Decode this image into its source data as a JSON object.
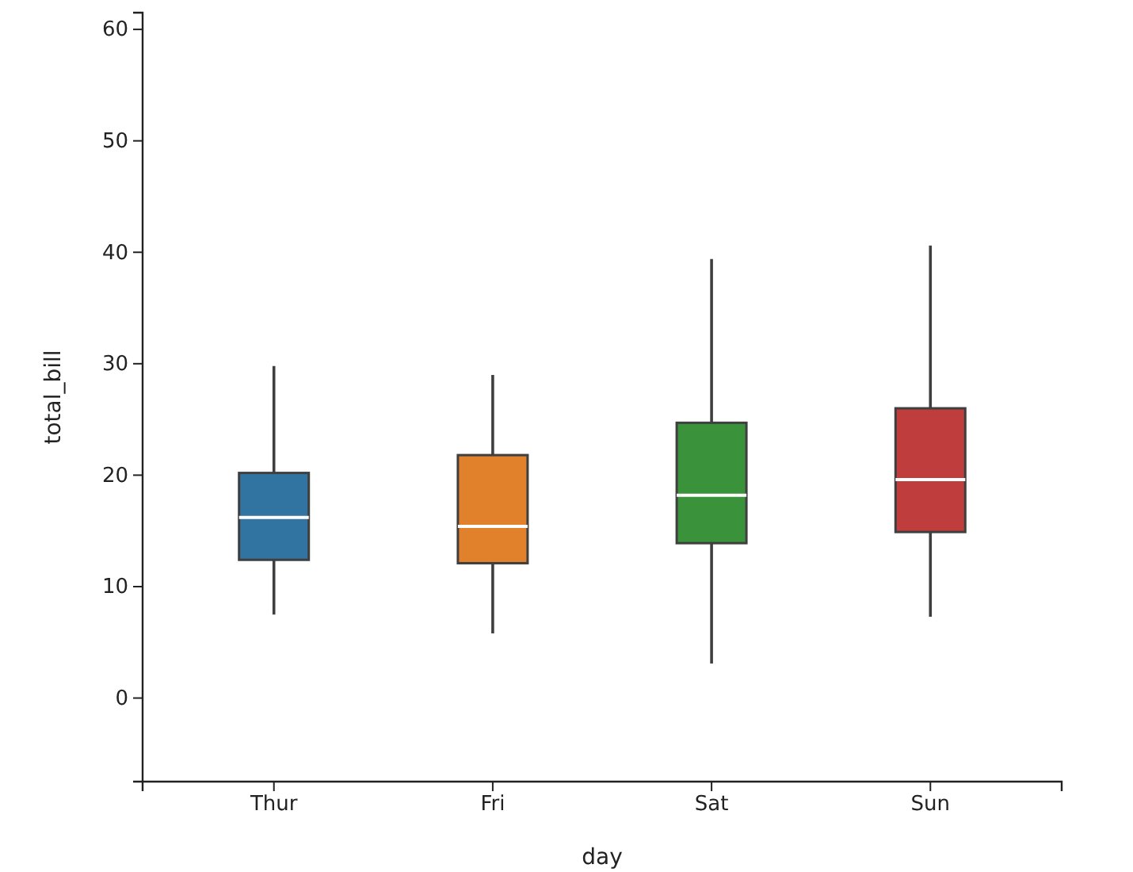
{
  "chart_data": {
    "type": "box",
    "xlabel": "day",
    "ylabel": "total_bill",
    "categories": [
      "Thur",
      "Fri",
      "Sat",
      "Sun"
    ],
    "colors": [
      "#3274a1",
      "#e1812c",
      "#3a923a",
      "#c03d3e"
    ],
    "boxes": [
      {
        "low": 7.5,
        "q1": 12.4,
        "median": 16.2,
        "q3": 20.2,
        "high": 29.8
      },
      {
        "low": 5.8,
        "q1": 12.1,
        "median": 15.4,
        "q3": 21.8,
        "high": 29.0
      },
      {
        "low": 3.1,
        "q1": 13.9,
        "median": 18.2,
        "q3": 24.7,
        "high": 39.4
      },
      {
        "low": 7.3,
        "q1": 14.9,
        "median": 19.6,
        "q3": 26.0,
        "high": 40.6
      }
    ],
    "ylim": [
      -7.5,
      61.5
    ],
    "yticks": [
      0,
      10,
      20,
      30,
      40,
      50,
      60
    ],
    "grid": false
  }
}
